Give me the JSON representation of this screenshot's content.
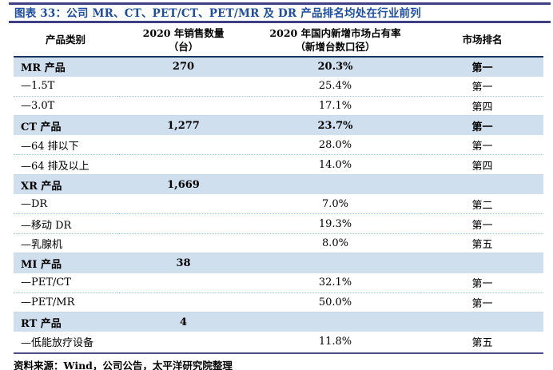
{
  "figure": {
    "title": "图表 33：公司 MR、CT、PET/CT、PET/MR 及 DR 产品排名均处在行业前列"
  },
  "table": {
    "headers": [
      {
        "line1": "产品类别",
        "line2": ""
      },
      {
        "line1": "2020 年销售数量",
        "line2": "（台）"
      },
      {
        "line1": "2020 年国内新增市场占有率",
        "line2": "（新增台数口径）"
      },
      {
        "line1": "市场排名",
        "line2": ""
      }
    ],
    "rows": [
      {
        "category": "MR 产品",
        "sales": "270",
        "share": "20.3%",
        "rank": "第一",
        "highlight": true
      },
      {
        "category": "—1.5T",
        "sales": "",
        "share": "25.4%",
        "rank": "第一",
        "highlight": false
      },
      {
        "category": "—3.0T",
        "sales": "",
        "share": "17.1%",
        "rank": "第四",
        "highlight": false
      },
      {
        "category": "CT 产品",
        "sales": "1,277",
        "share": "23.7%",
        "rank": "第一",
        "highlight": true
      },
      {
        "category": "—64 排以下",
        "sales": "",
        "share": "28.0%",
        "rank": "第一",
        "highlight": false
      },
      {
        "category": "—64 排及以上",
        "sales": "",
        "share": "14.0%",
        "rank": "第四",
        "highlight": false
      },
      {
        "category": "XR 产品",
        "sales": "1,669",
        "share": "",
        "rank": "",
        "highlight": true
      },
      {
        "category": "—DR",
        "sales": "",
        "share": "7.0%",
        "rank": "第二",
        "highlight": false
      },
      {
        "category": "—移动 DR",
        "sales": "",
        "share": "19.3%",
        "rank": "第一",
        "highlight": false
      },
      {
        "category": "—乳腺机",
        "sales": "",
        "share": "8.0%",
        "rank": "第五",
        "highlight": false
      },
      {
        "category": "MI 产品",
        "sales": "38",
        "share": "",
        "rank": "",
        "highlight": true
      },
      {
        "category": "—PET/CT",
        "sales": "",
        "share": "32.1%",
        "rank": "第一",
        "highlight": false
      },
      {
        "category": "—PET/MR",
        "sales": "",
        "share": "50.0%",
        "rank": "第一",
        "highlight": false
      },
      {
        "category": "RT 产品",
        "sales": "4",
        "share": "",
        "rank": "",
        "highlight": true
      },
      {
        "category": "—低能放疗设备",
        "sales": "",
        "share": "11.8%",
        "rank": "第五",
        "highlight": false
      }
    ]
  },
  "footer": {
    "source": "资料来源：Wind，公司公告，太平洋研究院整理"
  },
  "colors": {
    "title_text": "#1D4EA1",
    "title_band_line": "#3E3E80",
    "header_rule": "#17375E",
    "footer_rule": "#4D4D8B",
    "row_highlight_bg": "#CFDFEE",
    "dotted_separator": "#9DC3E6"
  }
}
